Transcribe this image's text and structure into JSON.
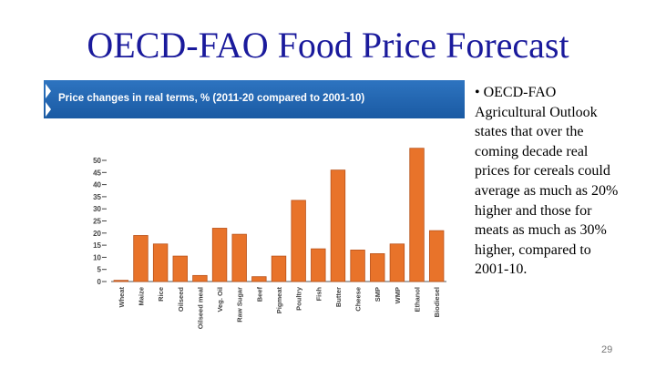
{
  "slide_title": "OECD-FAO Food Price Forecast",
  "bullet": "• OECD-FAO Agricultural Outlook states that over the coming decade real prices for cereals could average as much as 20% higher and those for meats as much as 30% higher, compared to 2001-10.",
  "page_number": "29",
  "chart_data": {
    "type": "bar",
    "title": "Price changes in real terms, % (2011-20 compared to 2001-10)",
    "categories": [
      "Wheat",
      "Maize",
      "Rice",
      "Oilseed",
      "Oilseed meal",
      "Veg. Oil",
      "Raw Sugar",
      "Beef",
      "Pigmeat",
      "Poultry",
      "Fish",
      "Butter",
      "Cheese",
      "SMP",
      "WMP",
      "Ethanol",
      "Biodiesel"
    ],
    "values": [
      0.5,
      19,
      15.5,
      10.5,
      2.5,
      22,
      19.5,
      2,
      10.5,
      33.5,
      13.5,
      46,
      13,
      11.5,
      15.5,
      55,
      21
    ],
    "color": "#e8732a",
    "ylim": [
      0,
      57
    ],
    "yticks": [
      0,
      5,
      10,
      15,
      20,
      25,
      30,
      35,
      40,
      45,
      50
    ],
    "grid": false
  }
}
